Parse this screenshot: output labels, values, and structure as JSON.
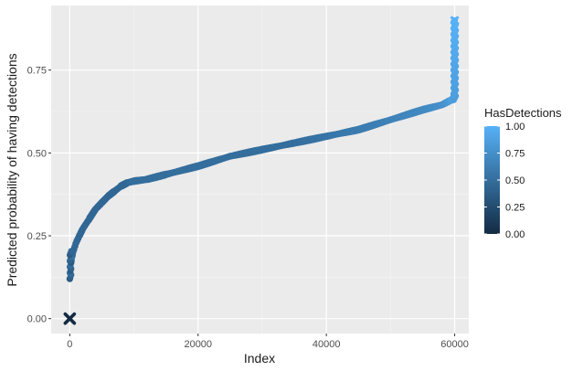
{
  "chart_data": {
    "type": "scatter",
    "title": "",
    "xlabel": "Index",
    "ylabel": "Predicted probability of having detections",
    "xlim": [
      -2900,
      62200
    ],
    "ylim": [
      -0.045,
      0.945
    ],
    "x_ticks": [
      0,
      20000,
      40000,
      60000
    ],
    "x_tick_labels": [
      "0",
      "20000",
      "40000",
      "60000"
    ],
    "y_ticks": [
      0.0,
      0.25,
      0.5,
      0.75
    ],
    "y_tick_labels": [
      "0.00",
      "0.25",
      "0.50",
      "0.75"
    ],
    "grid": true,
    "legend": {
      "title": "HasDetections",
      "position": "right",
      "type": "colorbar",
      "range": [
        0,
        1
      ],
      "ticks": [
        0.0,
        0.25,
        0.5,
        0.75,
        1.0
      ],
      "tick_labels": [
        "0.00",
        "0.25",
        "0.50",
        "0.75",
        "1.00"
      ],
      "color_low": "#132B43",
      "color_high": "#56B1F7"
    },
    "curve": {
      "name": "",
      "x": [
        0,
        200,
        500,
        1000,
        1500,
        2000,
        3000,
        4000,
        5000,
        6000,
        7000,
        8000,
        9000,
        10000,
        12000,
        15000,
        20000,
        25000,
        30000,
        35000,
        40000,
        45000,
        50000,
        55000,
        58000,
        59000,
        59500,
        59800,
        60000
      ],
      "y": [
        0.12,
        0.17,
        0.2,
        0.23,
        0.25,
        0.27,
        0.3,
        0.33,
        0.35,
        0.37,
        0.385,
        0.4,
        0.41,
        0.415,
        0.42,
        0.435,
        0.46,
        0.49,
        0.51,
        0.53,
        0.55,
        0.57,
        0.6,
        0.63,
        0.645,
        0.655,
        0.66,
        0.665,
        0.68
      ],
      "has_detections": [
        0.5,
        0.45,
        0.45,
        0.45,
        0.45,
        0.45,
        0.45,
        0.45,
        0.45,
        0.45,
        0.45,
        0.45,
        0.45,
        0.5,
        0.5,
        0.5,
        0.5,
        0.5,
        0.5,
        0.5,
        0.55,
        0.6,
        0.65,
        0.7,
        0.75,
        0.8,
        0.85,
        0.9,
        0.9
      ]
    },
    "spike": {
      "x": 60000,
      "y_range": [
        0.66,
        0.9
      ],
      "has_detections": 1.0
    },
    "outlier": {
      "x": 0,
      "y": 0.0,
      "has_detections": 0.0
    }
  }
}
